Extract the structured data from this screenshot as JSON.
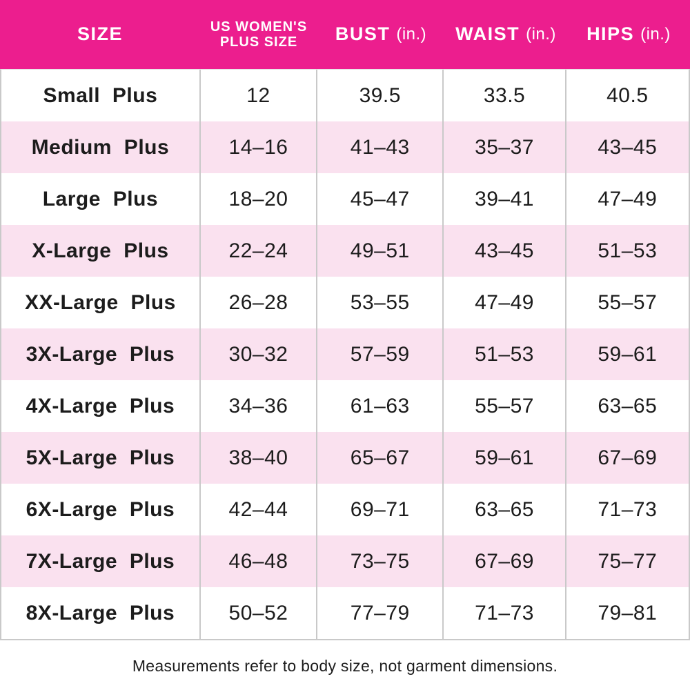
{
  "chart_data": {
    "type": "table",
    "columns": [
      "SIZE",
      "US WOMEN'S PLUS SIZE",
      "BUST (in.)",
      "WAIST (in.)",
      "HIPS (in.)"
    ],
    "rows": [
      [
        "Small Plus",
        "12",
        "39.5",
        "33.5",
        "40.5"
      ],
      [
        "Medium Plus",
        "14–16",
        "41–43",
        "35–37",
        "43–45"
      ],
      [
        "Large Plus",
        "18–20",
        "45–47",
        "39–41",
        "47–49"
      ],
      [
        "X-Large Plus",
        "22–24",
        "49–51",
        "43–45",
        "51–53"
      ],
      [
        "XX-Large Plus",
        "26–28",
        "53–55",
        "47–49",
        "55–57"
      ],
      [
        "3X-Large Plus",
        "30–32",
        "57–59",
        "51–53",
        "59–61"
      ],
      [
        "4X-Large Plus",
        "34–36",
        "61–63",
        "55–57",
        "63–65"
      ],
      [
        "5X-Large Plus",
        "38–40",
        "65–67",
        "59–61",
        "67–69"
      ],
      [
        "6X-Large Plus",
        "42–44",
        "69–71",
        "63–65",
        "71–73"
      ],
      [
        "7X-Large Plus",
        "46–48",
        "73–75",
        "67–69",
        "75–77"
      ],
      [
        "8X-Large Plus",
        "50–52",
        "77–79",
        "71–73",
        "79–81"
      ]
    ],
    "footnote": "Measurements refer to body size, not garment dimensions."
  },
  "header_display": {
    "size_label": "SIZE",
    "us_plus_line1": "US WOMEN'S",
    "us_plus_line2": "PLUS SIZE",
    "bust_label": "BUST",
    "waist_label": "WAIST",
    "hips_label": "HIPS",
    "unit_label": "(in.)"
  },
  "footer": {
    "note": "Measurements refer to body size, not garment dimensions."
  },
  "colors": {
    "header_bg": "#EC1E8E",
    "alt_row_bg": "#FAE1EF",
    "border": "#C9C9C9",
    "header_text": "#FFFFFF",
    "body_text": "#1C1C1C"
  }
}
